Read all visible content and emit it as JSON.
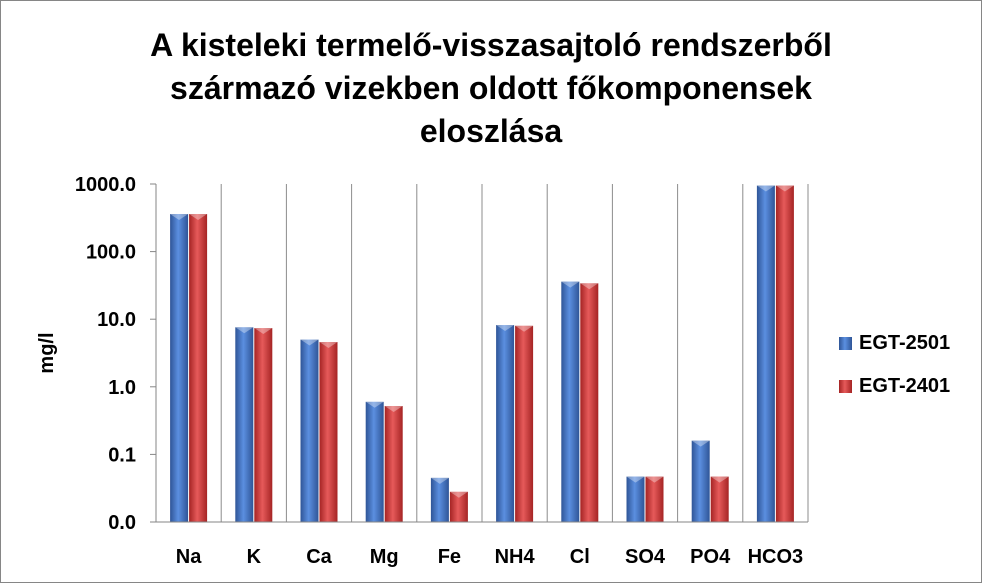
{
  "chart_data": {
    "type": "bar",
    "title_lines": [
      "A kisteleki termelő-visszasajtoló rendszerből",
      "származó  vizekben oldott főkomponensek",
      "eloszlása"
    ],
    "xlabel": "",
    "ylabel": "mg/l",
    "y_scale": "log",
    "ylim": [
      0.01,
      1000
    ],
    "y_ticks": [
      {
        "value": 1000,
        "label": "1000.0"
      },
      {
        "value": 100,
        "label": "100.0"
      },
      {
        "value": 10,
        "label": "10.0"
      },
      {
        "value": 1,
        "label": "1.0"
      },
      {
        "value": 0.1,
        "label": "0.1"
      },
      {
        "value": 0.01,
        "label": "0.0"
      }
    ],
    "grid": "vertical category separators",
    "legend_position": "right",
    "categories": [
      "Na",
      "K",
      "Ca",
      "Mg",
      "Fe",
      "NH4",
      "Cl",
      "SO4",
      "PO4",
      "HCO3"
    ],
    "series": [
      {
        "name": "EGT-2501",
        "color": "#4472c4",
        "values": [
          360,
          7.6,
          5.0,
          0.6,
          0.045,
          8.2,
          36,
          0.047,
          0.16,
          950
        ]
      },
      {
        "name": "EGT-2401",
        "color": "#d03c3c",
        "values": [
          360,
          7.4,
          4.6,
          0.52,
          0.028,
          8.0,
          34,
          0.047,
          0.047,
          950
        ]
      }
    ]
  }
}
